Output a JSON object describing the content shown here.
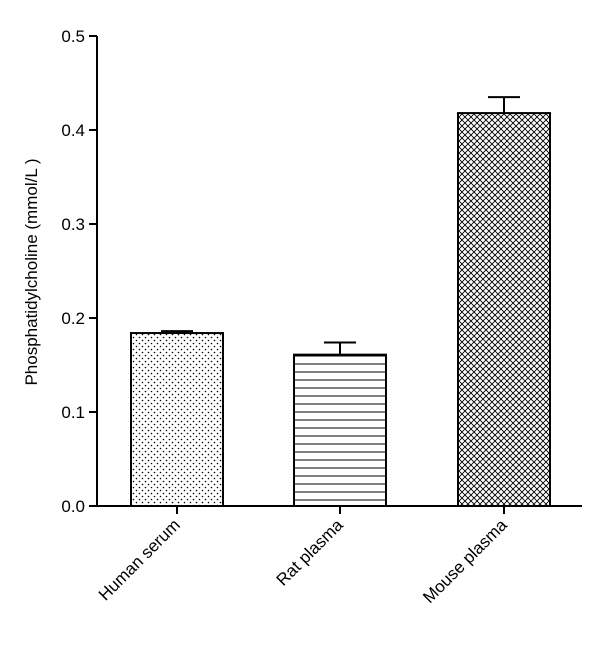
{
  "chart_data": {
    "type": "bar",
    "title": "",
    "xlabel": "",
    "ylabel": "Phosphatidylcholine (mmol/L )",
    "ylim": [
      0,
      0.5
    ],
    "yticks": [
      "0.0",
      "0.1",
      "0.2",
      "0.3",
      "0.4",
      "0.5"
    ],
    "categories": [
      "Human serum",
      "Rat plasma",
      "Mouse plasma"
    ],
    "values": [
      0.184,
      0.161,
      0.418
    ],
    "errors": [
      0.002,
      0.013,
      0.017
    ],
    "fill_patterns": [
      "dots",
      "horizontal-lines",
      "crosshatch"
    ],
    "grid": false,
    "legend": "none"
  },
  "colors": {
    "axis": "#000000",
    "bar_fill": "#ffffff",
    "bar_stroke": "#000000",
    "pattern": "#000000"
  }
}
